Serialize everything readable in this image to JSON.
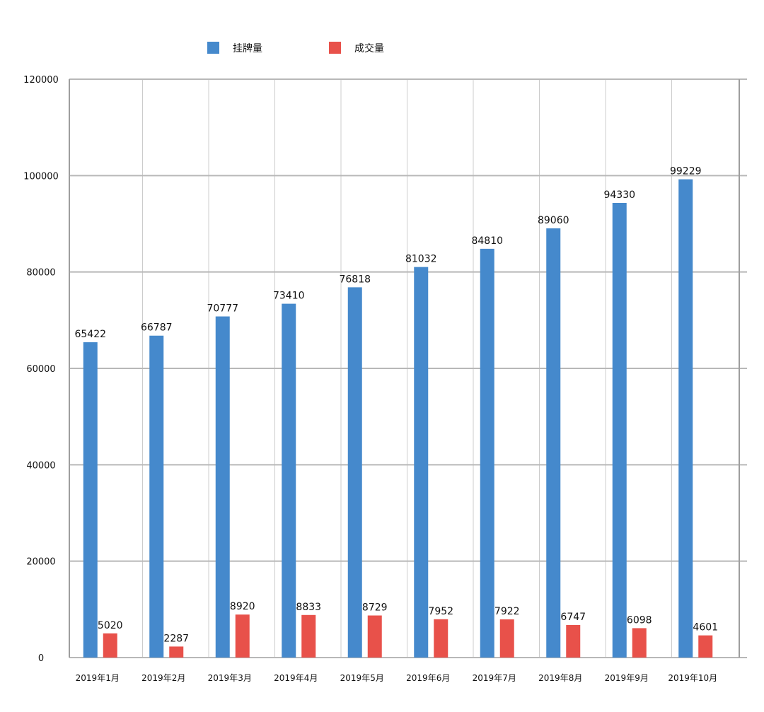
{
  "chart_data": {
    "type": "bar",
    "title": "",
    "xlabel": "",
    "ylabel": "",
    "ylim": [
      0,
      120000
    ],
    "yticks": [
      0,
      20000,
      40000,
      60000,
      80000,
      100000,
      120000
    ],
    "grid": true,
    "legend_position": "top",
    "categories": [
      "2019年1月",
      "2019年2月",
      "2019年3月",
      "2019年4月",
      "2019年5月",
      "2019年6月",
      "2019年7月",
      "2019年8月",
      "2019年9月",
      "2019年10月"
    ],
    "series": [
      {
        "name": "挂牌量",
        "color": "#4589cc",
        "values": [
          65422,
          66787,
          70777,
          73410,
          76818,
          81032,
          84810,
          89060,
          94330,
          99229
        ]
      },
      {
        "name": "成交量",
        "color": "#e8514a",
        "values": [
          5020,
          2287,
          8920,
          8833,
          8729,
          7952,
          7922,
          6747,
          6098,
          4601
        ]
      }
    ]
  }
}
